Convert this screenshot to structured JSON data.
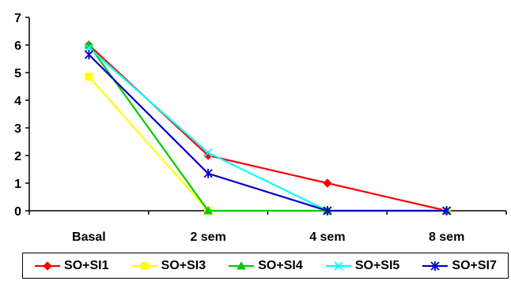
{
  "chart_data": {
    "type": "line",
    "title": "",
    "xlabel": "",
    "ylabel": "",
    "categories": [
      "Basal",
      "2 sem",
      "4 sem",
      "8 sem"
    ],
    "ylim": [
      0,
      7
    ],
    "yticks": [
      "0",
      "1",
      "2",
      "3",
      "4",
      "5",
      "6",
      "7"
    ],
    "grid": false,
    "legend_position": "bottom",
    "series": [
      {
        "name": "SO+SI1",
        "color": "#ff0000",
        "marker": "diamond",
        "values": [
          6.0,
          2.0,
          1.0,
          0.0
        ]
      },
      {
        "name": "SO+SI3",
        "color": "#ffff00",
        "marker": "square",
        "values": [
          4.85,
          0.0,
          0.0,
          0.0
        ]
      },
      {
        "name": "SO+SI4",
        "color": "#00cc00",
        "marker": "triangle",
        "values": [
          6.0,
          0.0,
          0.0,
          0.0
        ]
      },
      {
        "name": "SO+SI5",
        "color": "#00ffff",
        "marker": "x",
        "values": [
          5.9,
          2.1,
          0.0,
          0.0
        ]
      },
      {
        "name": "SO+SI7",
        "color": "#0000cc",
        "marker": "star",
        "values": [
          5.65,
          1.35,
          0.0,
          0.0
        ]
      }
    ]
  }
}
